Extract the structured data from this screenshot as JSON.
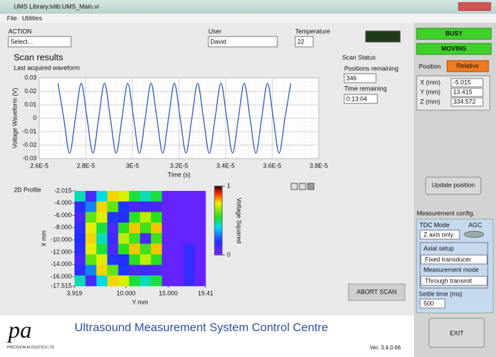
{
  "window": {
    "title": "UMS Library.lvlib:UMS_Main.vi",
    "menu": [
      "File",
      "Utilities"
    ]
  },
  "controls": {
    "action_label": "ACTION",
    "action_value": "Select...",
    "user_label": "User",
    "user_value": "David",
    "temperature_label": "Temperature",
    "temperature_value": "22"
  },
  "status": {
    "busy": "BUSY",
    "moving": "MOVING"
  },
  "position": {
    "label": "Position",
    "mode": "Relative",
    "x_label": "X (mm)",
    "x_value": "-5.015",
    "y_label": "Y (mm)",
    "y_value": "13.415",
    "z_label": "Z (mm)",
    "z_value": "334.572"
  },
  "scan": {
    "title": "Scan results",
    "waveform_label": "Last acquired waveform",
    "status_title": "Scan Status",
    "positions_label": "Positions remaining",
    "positions_value": "346",
    "time_label": "Time remaining",
    "time_value": "0:13:04",
    "profile_label": "2D Profile"
  },
  "buttons": {
    "update": "Update position",
    "abort": "ABORT SCAN",
    "exit": "EXIT"
  },
  "measurement": {
    "title": "Measurement config.",
    "tdc_label": "TDC Mode",
    "agc_label": "AGC",
    "tdc_value": "Z axis only",
    "axial_label": "Axial setup",
    "axial_value": "Fixed transducer",
    "mode_label": "Measurement mode",
    "mode_value": "Through transmit",
    "settle_label": "Settle time (ms)",
    "settle_value": "500"
  },
  "footer": {
    "logo": "pa",
    "company": "PRECISION ACOUSTICS LTD",
    "title": "Ultrasound Measurement System Control Centre",
    "version": "Ver. 3.4.0.66"
  },
  "chart_data": [
    {
      "type": "line",
      "x_label": "Time (s)",
      "y_label": "Voltage Waveform (V)",
      "color": "#2a55b8",
      "grid": true,
      "x": [
        2.68e-05,
        2.705e-05,
        2.73e-05,
        2.755e-05,
        2.78e-05,
        2.805e-05,
        2.83e-05,
        2.855e-05,
        2.88e-05,
        2.905e-05,
        2.93e-05,
        2.955e-05,
        2.98e-05,
        3.005e-05,
        3.03e-05,
        3.055e-05,
        3.08e-05,
        3.105e-05,
        3.13e-05,
        3.155e-05,
        3.18e-05,
        3.205e-05,
        3.23e-05,
        3.255e-05,
        3.28e-05,
        3.305e-05,
        3.33e-05,
        3.355e-05,
        3.38e-05,
        3.405e-05,
        3.43e-05,
        3.455e-05,
        3.48e-05,
        3.505e-05,
        3.53e-05,
        3.555e-05,
        3.58e-05,
        3.605e-05,
        3.63e-05,
        3.655e-05,
        3.68e-05
      ],
      "values": [
        0.026,
        0,
        -0.026,
        0,
        0.026,
        0,
        -0.026,
        0,
        0.026,
        0,
        -0.026,
        0,
        0.026,
        0,
        -0.026,
        0,
        0.026,
        0,
        -0.026,
        0,
        0.026,
        0,
        -0.026,
        0,
        0.026,
        0,
        -0.026,
        0,
        0.026,
        0,
        -0.026,
        0,
        0.026,
        0,
        -0.026,
        0,
        0.026,
        0,
        -0.026,
        0,
        0.026
      ],
      "xlim": [
        2.6e-05,
        3.8e-05
      ],
      "xticks": [
        {
          "value": 2.6e-05,
          "label": "2.6E-5"
        },
        {
          "value": 2.8e-05,
          "label": "2.8E-5"
        },
        {
          "value": 3e-05,
          "label": "3E-5"
        },
        {
          "value": 3.2e-05,
          "label": "3.2E-5"
        },
        {
          "value": 3.4e-05,
          "label": "3.4E-5"
        },
        {
          "value": 3.6e-05,
          "label": "3.6E-5"
        },
        {
          "value": 3.8e-05,
          "label": "3.8E-5"
        }
      ],
      "ylim": [
        -0.03,
        0.03
      ],
      "yticks": [
        0.03,
        0.02,
        0.01,
        0,
        -0.01,
        -0.02,
        -0.03
      ]
    },
    {
      "type": "heatmap",
      "x_label": "Y mm",
      "y_label": "X mm",
      "colorbar_label": "Voltage Squared",
      "xlim": [
        3.919,
        19.41
      ],
      "xticks": [
        3.919,
        {
          "value": 10,
          "label": "10.000"
        },
        {
          "value": 15,
          "label": "15.000"
        },
        19.41
      ],
      "ylim": [
        -17.515,
        -2.015
      ],
      "yticks": [
        -2.015,
        {
          "value": -4,
          "label": "-4.000"
        },
        {
          "value": -6,
          "label": "-6.000"
        },
        {
          "value": -8,
          "label": "-8.000"
        },
        {
          "value": -10,
          "label": "-10.000"
        },
        {
          "value": -12,
          "label": "-12.000"
        },
        {
          "value": -14,
          "label": "-14.000"
        },
        {
          "value": -16,
          "label": "-16.000"
        },
        -17.515
      ],
      "clim": [
        0,
        1
      ],
      "cticks": [
        1,
        0
      ],
      "z": [
        [
          0.45,
          0.1,
          0.42,
          0.77,
          0.73,
          0.53,
          0.45,
          0.53,
          0.05,
          0.05,
          0.05,
          0.05
        ],
        [
          0.17,
          0.3,
          0.77,
          0.61,
          0.21,
          0.1,
          0.13,
          0.1,
          0.05,
          0.05,
          0.05,
          0.05
        ],
        [
          0.11,
          0.61,
          0.73,
          0.21,
          0.19,
          0.56,
          0.7,
          0.56,
          0.05,
          0.05,
          0.05,
          0.05
        ],
        [
          0.17,
          0.74,
          0.53,
          0.1,
          0.56,
          0.78,
          0.58,
          0.78,
          0.05,
          0.05,
          0.05,
          0.05
        ],
        [
          0.2,
          0.77,
          0.45,
          0.13,
          0.7,
          0.58,
          0.1,
          0.58,
          0.05,
          0.05,
          0.05,
          0.05
        ],
        [
          0.17,
          0.74,
          0.53,
          0.1,
          0.56,
          0.78,
          0.58,
          0.78,
          0.05,
          0.05,
          0.15,
          0.05
        ],
        [
          0.11,
          0.61,
          0.73,
          0.21,
          0.19,
          0.56,
          0.7,
          0.56,
          0.05,
          0.05,
          0.15,
          0.05
        ],
        [
          0.17,
          0.3,
          0.77,
          0.61,
          0.21,
          0.1,
          0.13,
          0.1,
          0.05,
          0.05,
          0.15,
          0.05
        ],
        [
          0.45,
          0.1,
          0.42,
          0.77,
          0.73,
          0.53,
          0.45,
          0.53,
          0.05,
          0.05,
          0.15,
          0.05
        ]
      ]
    }
  ]
}
